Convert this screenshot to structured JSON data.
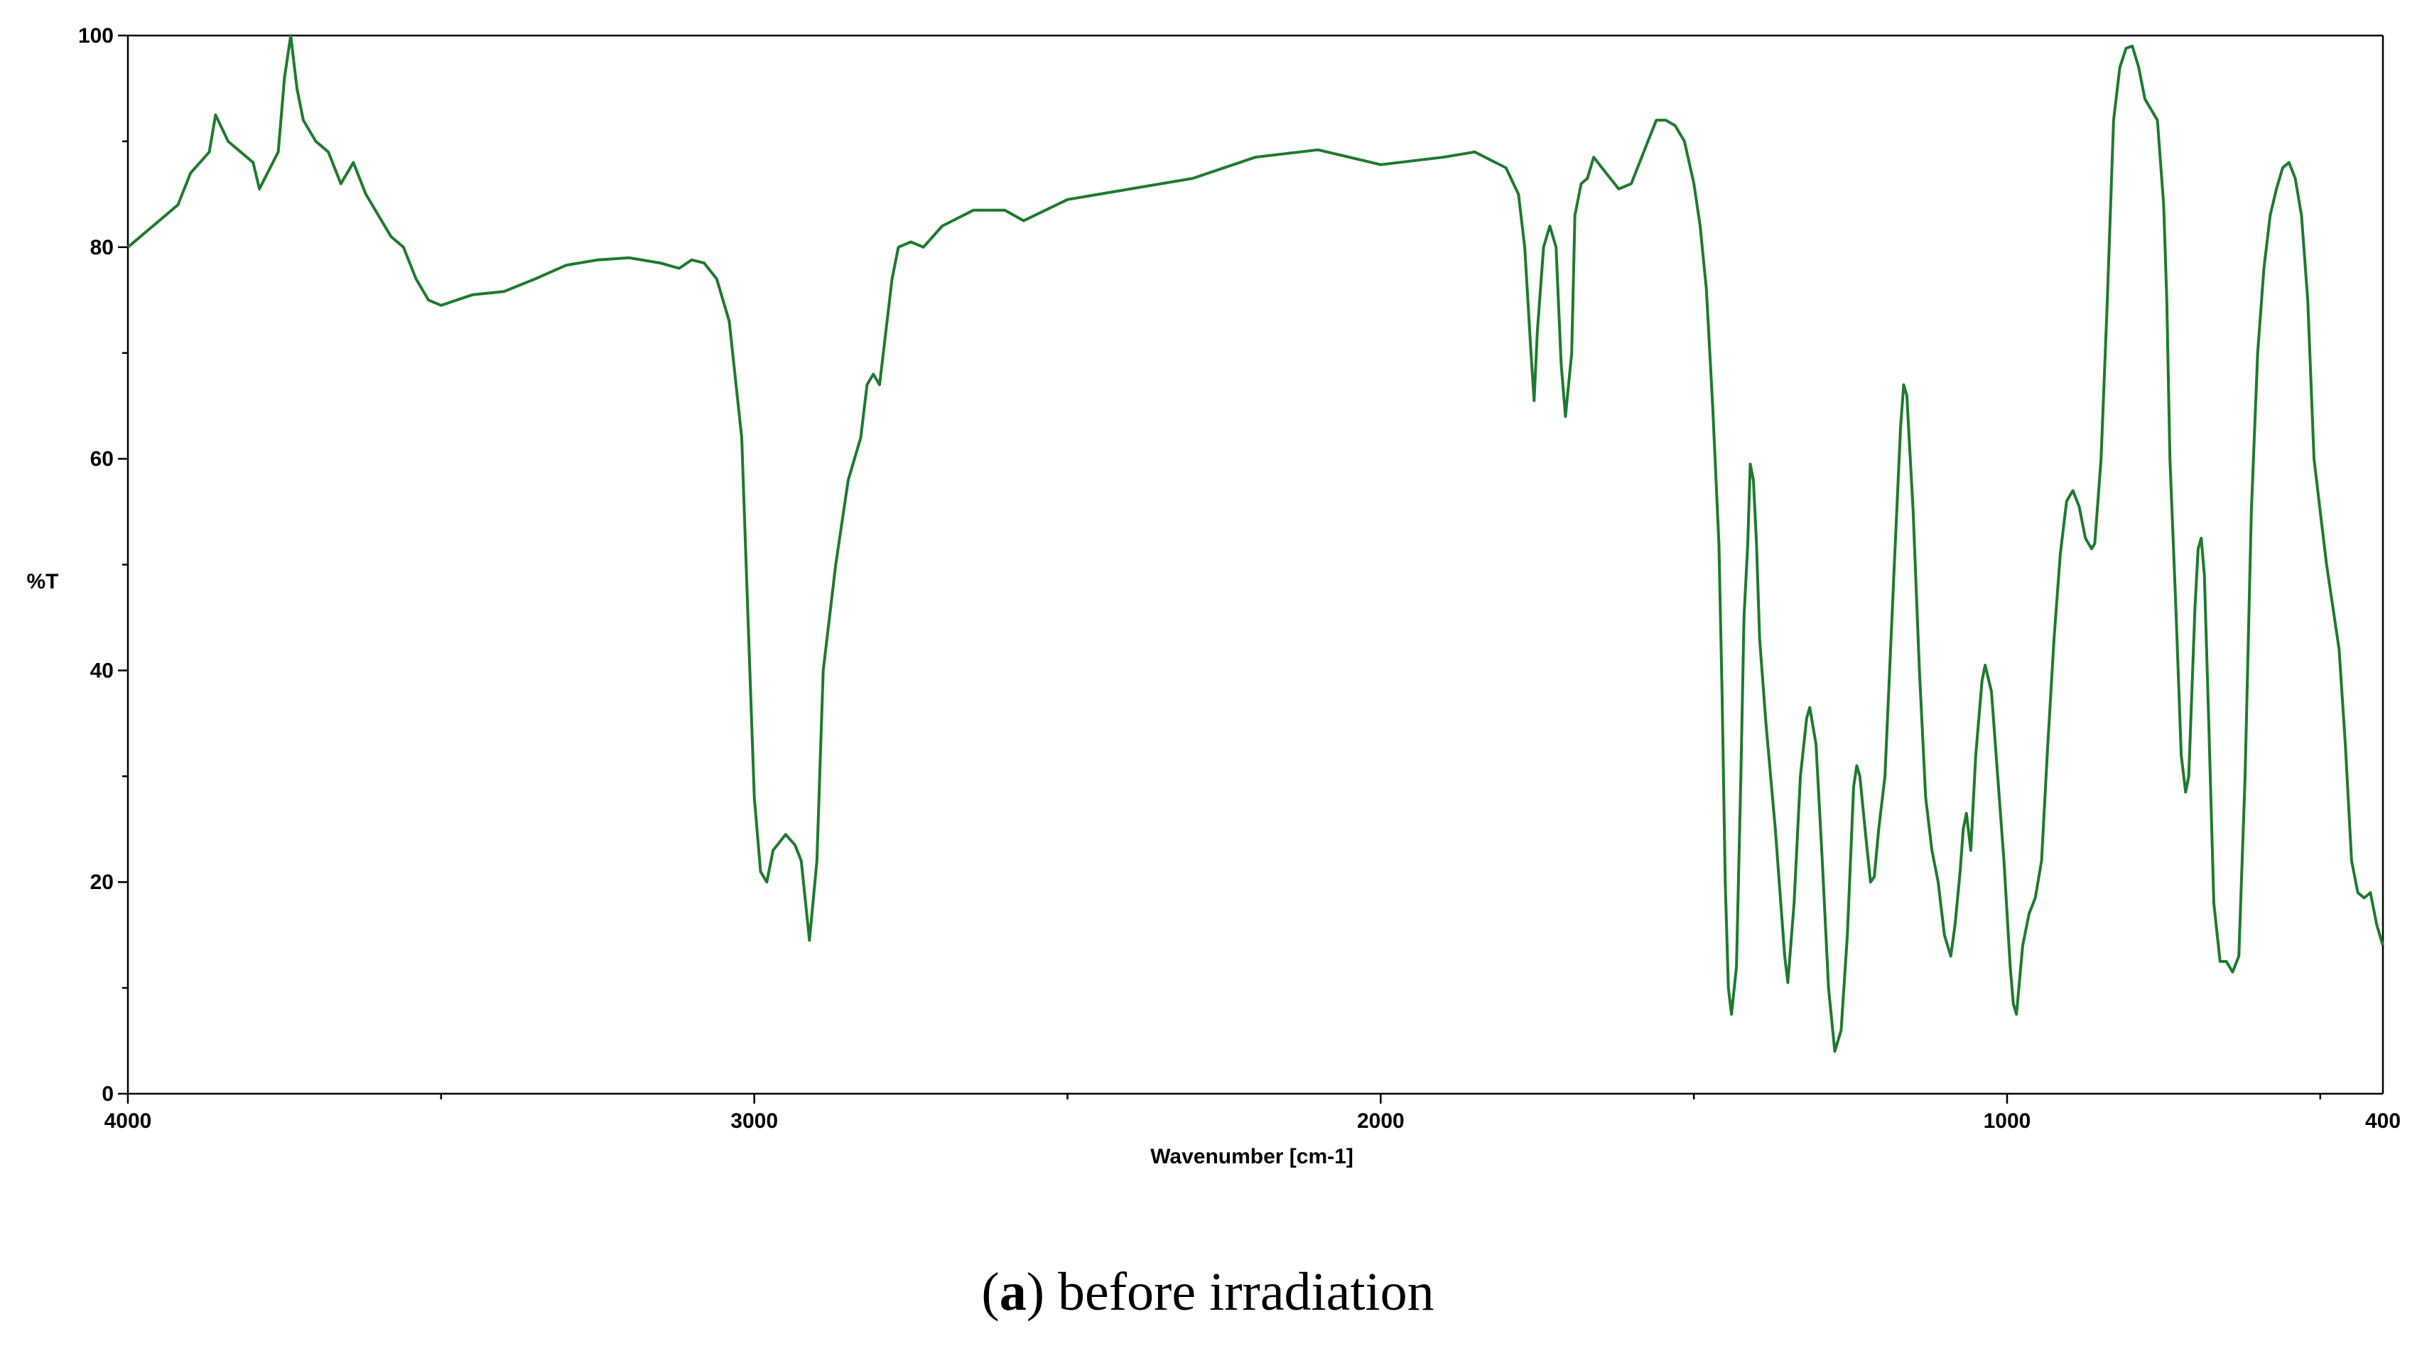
{
  "chart_data": {
    "type": "line",
    "title": "",
    "xlabel": "Wavenumber [cm-1]",
    "ylabel": "%T",
    "xlim": [
      4000,
      400
    ],
    "ylim": [
      0,
      100
    ],
    "x_ticks": [
      4000,
      3000,
      2000,
      1000,
      400
    ],
    "x_tick_labels": [
      "4000",
      "3000",
      "2000",
      "1000",
      "400"
    ],
    "y_ticks": [
      0,
      20,
      40,
      60,
      80,
      100
    ],
    "y_tick_labels": [
      "0",
      "20",
      "40",
      "60",
      "80",
      "100"
    ],
    "grid": false,
    "line_color": "#1e7a2e",
    "series": [
      {
        "points": [
          [
            4000,
            80
          ],
          [
            3960,
            82
          ],
          [
            3920,
            84
          ],
          [
            3900,
            87
          ],
          [
            3870,
            89
          ],
          [
            3860,
            92.5
          ],
          [
            3840,
            90
          ],
          [
            3820,
            89
          ],
          [
            3800,
            88
          ],
          [
            3790,
            85.5
          ],
          [
            3760,
            89
          ],
          [
            3750,
            96
          ],
          [
            3740,
            100
          ],
          [
            3730,
            95
          ],
          [
            3720,
            92
          ],
          [
            3700,
            90
          ],
          [
            3680,
            89
          ],
          [
            3660,
            86
          ],
          [
            3640,
            88
          ],
          [
            3620,
            85
          ],
          [
            3600,
            83
          ],
          [
            3580,
            81
          ],
          [
            3560,
            80
          ],
          [
            3540,
            77
          ],
          [
            3520,
            75
          ],
          [
            3500,
            74.5
          ],
          [
            3450,
            75.5
          ],
          [
            3400,
            75.8
          ],
          [
            3350,
            77
          ],
          [
            3300,
            78.3
          ],
          [
            3250,
            78.8
          ],
          [
            3200,
            79
          ],
          [
            3150,
            78.5
          ],
          [
            3120,
            78
          ],
          [
            3100,
            78.8
          ],
          [
            3080,
            78.5
          ],
          [
            3060,
            77
          ],
          [
            3040,
            73
          ],
          [
            3020,
            62
          ],
          [
            3010,
            45
          ],
          [
            3000,
            28
          ],
          [
            2990,
            21
          ],
          [
            2980,
            20
          ],
          [
            2970,
            23
          ],
          [
            2950,
            24.5
          ],
          [
            2935,
            23.5
          ],
          [
            2925,
            22
          ],
          [
            2912,
            14.5
          ],
          [
            2900,
            22
          ],
          [
            2890,
            40
          ],
          [
            2870,
            50
          ],
          [
            2850,
            58
          ],
          [
            2830,
            62
          ],
          [
            2820,
            67
          ],
          [
            2810,
            68
          ],
          [
            2800,
            67
          ],
          [
            2790,
            72
          ],
          [
            2780,
            77
          ],
          [
            2770,
            80
          ],
          [
            2750,
            80.5
          ],
          [
            2730,
            80
          ],
          [
            2700,
            82
          ],
          [
            2650,
            83.5
          ],
          [
            2600,
            83.5
          ],
          [
            2570,
            82.5
          ],
          [
            2500,
            84.5
          ],
          [
            2400,
            85.5
          ],
          [
            2300,
            86.5
          ],
          [
            2200,
            88.5
          ],
          [
            2100,
            89.2
          ],
          [
            2000,
            87.8
          ],
          [
            1900,
            88.5
          ],
          [
            1850,
            89
          ],
          [
            1800,
            87.5
          ],
          [
            1780,
            85
          ],
          [
            1770,
            80
          ],
          [
            1760,
            70
          ],
          [
            1755,
            65.5
          ],
          [
            1750,
            72
          ],
          [
            1740,
            80
          ],
          [
            1730,
            82
          ],
          [
            1720,
            80
          ],
          [
            1712,
            69
          ],
          [
            1705,
            64
          ],
          [
            1695,
            70
          ],
          [
            1690,
            83
          ],
          [
            1680,
            86
          ],
          [
            1670,
            86.5
          ],
          [
            1660,
            88.5
          ],
          [
            1640,
            87
          ],
          [
            1620,
            85.5
          ],
          [
            1600,
            86
          ],
          [
            1580,
            89
          ],
          [
            1560,
            92
          ],
          [
            1545,
            92
          ],
          [
            1530,
            91.5
          ],
          [
            1515,
            90
          ],
          [
            1500,
            86
          ],
          [
            1490,
            82
          ],
          [
            1480,
            76
          ],
          [
            1470,
            65
          ],
          [
            1460,
            52
          ],
          [
            1455,
            38
          ],
          [
            1450,
            20
          ],
          [
            1445,
            10
          ],
          [
            1440,
            7.5
          ],
          [
            1432,
            12
          ],
          [
            1425,
            30
          ],
          [
            1420,
            45
          ],
          [
            1414,
            52
          ],
          [
            1410,
            59.5
          ],
          [
            1405,
            58
          ],
          [
            1400,
            52
          ],
          [
            1395,
            43
          ],
          [
            1385,
            35
          ],
          [
            1370,
            25
          ],
          [
            1355,
            13
          ],
          [
            1350,
            10.5
          ],
          [
            1340,
            18
          ],
          [
            1330,
            30
          ],
          [
            1320,
            35.5
          ],
          [
            1315,
            36.5
          ],
          [
            1305,
            33
          ],
          [
            1295,
            22
          ],
          [
            1285,
            10
          ],
          [
            1275,
            4
          ],
          [
            1265,
            6
          ],
          [
            1255,
            15
          ],
          [
            1245,
            29
          ],
          [
            1240,
            31
          ],
          [
            1235,
            30
          ],
          [
            1225,
            24
          ],
          [
            1218,
            20
          ],
          [
            1212,
            20.5
          ],
          [
            1205,
            25
          ],
          [
            1195,
            30
          ],
          [
            1180,
            50
          ],
          [
            1170,
            63
          ],
          [
            1165,
            67
          ],
          [
            1160,
            66
          ],
          [
            1150,
            55
          ],
          [
            1140,
            40
          ],
          [
            1130,
            28
          ],
          [
            1120,
            23
          ],
          [
            1110,
            20
          ],
          [
            1100,
            15
          ],
          [
            1090,
            13
          ],
          [
            1083,
            16
          ],
          [
            1075,
            21
          ],
          [
            1070,
            25
          ],
          [
            1065,
            26.5
          ],
          [
            1058,
            23
          ],
          [
            1050,
            32
          ],
          [
            1040,
            39
          ],
          [
            1035,
            40.5
          ],
          [
            1025,
            38
          ],
          [
            1015,
            30
          ],
          [
            1005,
            22
          ],
          [
            995,
            12
          ],
          [
            990,
            8.5
          ],
          [
            985,
            7.5
          ],
          [
            975,
            14
          ],
          [
            965,
            17
          ],
          [
            955,
            18.5
          ],
          [
            945,
            22
          ],
          [
            935,
            33
          ],
          [
            925,
            43
          ],
          [
            915,
            51
          ],
          [
            905,
            56
          ],
          [
            895,
            57
          ],
          [
            885,
            55.5
          ],
          [
            875,
            52.5
          ],
          [
            865,
            51.5
          ],
          [
            860,
            52
          ],
          [
            850,
            60
          ],
          [
            840,
            75
          ],
          [
            830,
            92
          ],
          [
            820,
            97
          ],
          [
            810,
            98.8
          ],
          [
            800,
            99
          ],
          [
            790,
            97
          ],
          [
            780,
            94
          ],
          [
            770,
            93
          ],
          [
            760,
            92
          ],
          [
            750,
            84
          ],
          [
            745,
            75
          ],
          [
            740,
            60
          ],
          [
            730,
            45
          ],
          [
            722,
            32
          ],
          [
            715,
            28.5
          ],
          [
            710,
            30
          ],
          [
            705,
            38
          ],
          [
            700,
            46
          ],
          [
            695,
            51.5
          ],
          [
            690,
            52.5
          ],
          [
            685,
            49
          ],
          [
            678,
            35
          ],
          [
            670,
            18
          ],
          [
            660,
            12.5
          ],
          [
            650,
            12.5
          ],
          [
            640,
            11.5
          ],
          [
            630,
            13
          ],
          [
            620,
            30
          ],
          [
            610,
            55
          ],
          [
            600,
            70
          ],
          [
            590,
            78
          ],
          [
            580,
            83
          ],
          [
            570,
            85.5
          ],
          [
            560,
            87.5
          ],
          [
            550,
            88
          ],
          [
            540,
            86.5
          ],
          [
            530,
            83
          ],
          [
            520,
            75
          ],
          [
            510,
            60
          ],
          [
            500,
            55
          ],
          [
            490,
            50
          ],
          [
            480,
            46
          ],
          [
            470,
            42
          ],
          [
            460,
            33
          ],
          [
            450,
            22
          ],
          [
            440,
            19
          ],
          [
            430,
            18.5
          ],
          [
            420,
            19
          ],
          [
            410,
            16
          ],
          [
            400,
            14
          ]
        ]
      }
    ]
  },
  "caption": {
    "letter": "a",
    "text": " before irradiation"
  }
}
